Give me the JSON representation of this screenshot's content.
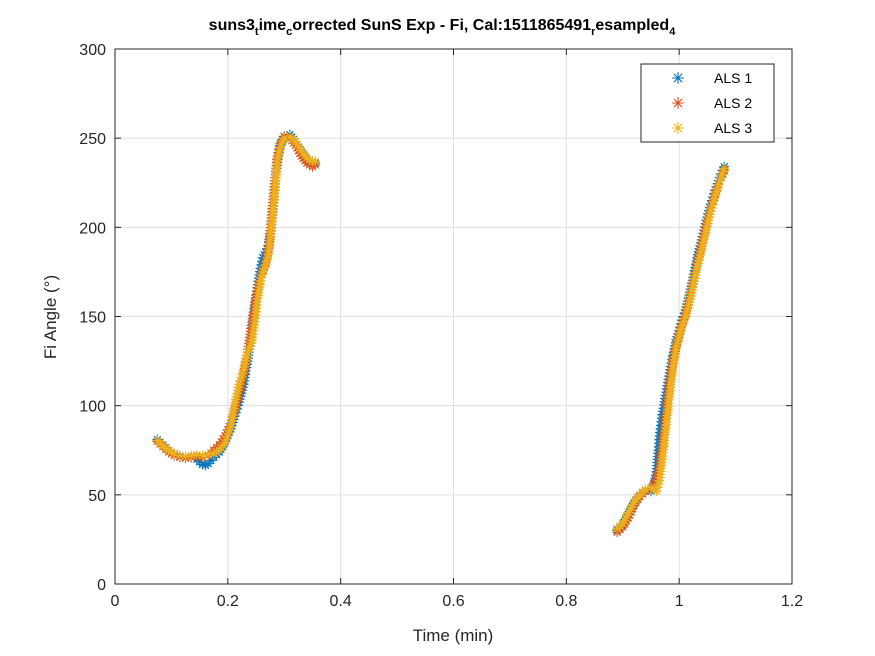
{
  "chart_data": {
    "type": "scatter",
    "title_parts": [
      {
        "text": "suns3",
        "sub": false
      },
      {
        "text": "t",
        "sub": true
      },
      {
        "text": "ime",
        "sub": false
      },
      {
        "text": "c",
        "sub": true
      },
      {
        "text": "orrected SunS Exp - Fi, Cal:1511865491",
        "sub": false
      },
      {
        "text": "r",
        "sub": true
      },
      {
        "text": "esampled",
        "sub": false
      },
      {
        "text": "4",
        "sub": true
      }
    ],
    "xlabel": "Time (min)",
    "ylabel": "Fi Angle (°)",
    "xlim": [
      0,
      1.2
    ],
    "ylim": [
      0,
      300
    ],
    "xticks": [
      "0",
      "0.2",
      "0.4",
      "0.6",
      "0.8",
      "1",
      "1.2"
    ],
    "yticks": [
      "0",
      "50",
      "100",
      "150",
      "200",
      "250",
      "300"
    ],
    "grid": true,
    "legend_position": "top-right",
    "marker": "*",
    "series": [
      {
        "name": "ALS 1",
        "color": "#0072BD",
        "points": [
          [
            0.075,
            81
          ],
          [
            0.085,
            78
          ],
          [
            0.095,
            75
          ],
          [
            0.105,
            73
          ],
          [
            0.115,
            71.5
          ],
          [
            0.125,
            71
          ],
          [
            0.135,
            71
          ],
          [
            0.145,
            70
          ],
          [
            0.155,
            67
          ],
          [
            0.16,
            66.5
          ],
          [
            0.165,
            67.5
          ],
          [
            0.175,
            71
          ],
          [
            0.185,
            74
          ],
          [
            0.195,
            80
          ],
          [
            0.205,
            87
          ],
          [
            0.212,
            94
          ],
          [
            0.22,
            102
          ],
          [
            0.228,
            112
          ],
          [
            0.235,
            125
          ],
          [
            0.242,
            140
          ],
          [
            0.248,
            155
          ],
          [
            0.253,
            168
          ],
          [
            0.258,
            177
          ],
          [
            0.262,
            183
          ],
          [
            0.267,
            186
          ],
          [
            0.272,
            190
          ],
          [
            0.276,
            198
          ],
          [
            0.28,
            212
          ],
          [
            0.284,
            226
          ],
          [
            0.288,
            238
          ],
          [
            0.293,
            246
          ],
          [
            0.3,
            251
          ],
          [
            0.31,
            252
          ],
          [
            0.32,
            248
          ],
          [
            0.33,
            242
          ],
          [
            0.34,
            238
          ],
          [
            0.35,
            237
          ],
          [
            0.355,
            236
          ],
          [
            0.89,
            30
          ],
          [
            0.9,
            33
          ],
          [
            0.91,
            39
          ],
          [
            0.92,
            45
          ],
          [
            0.93,
            50
          ],
          [
            0.94,
            52
          ],
          [
            0.95,
            52
          ],
          [
            0.955,
            55
          ],
          [
            0.96,
            63
          ],
          [
            0.963,
            75
          ],
          [
            0.966,
            85
          ],
          [
            0.97,
            95
          ],
          [
            0.975,
            104
          ],
          [
            0.98,
            113
          ],
          [
            0.985,
            122
          ],
          [
            0.99,
            130
          ],
          [
            0.995,
            137
          ],
          [
            1.0,
            142
          ],
          [
            1.005,
            148
          ],
          [
            1.01,
            152
          ],
          [
            1.018,
            162
          ],
          [
            1.025,
            172
          ],
          [
            1.032,
            183
          ],
          [
            1.04,
            193
          ],
          [
            1.048,
            204
          ],
          [
            1.056,
            213
          ],
          [
            1.064,
            221
          ],
          [
            1.072,
            228
          ],
          [
            1.08,
            234
          ]
        ]
      },
      {
        "name": "ALS 2",
        "color": "#D95319",
        "points": [
          [
            0.075,
            80
          ],
          [
            0.085,
            77
          ],
          [
            0.095,
            74
          ],
          [
            0.105,
            72
          ],
          [
            0.115,
            71
          ],
          [
            0.125,
            70.5
          ],
          [
            0.135,
            71
          ],
          [
            0.145,
            71.5
          ],
          [
            0.155,
            71
          ],
          [
            0.165,
            72
          ],
          [
            0.175,
            75
          ],
          [
            0.185,
            78
          ],
          [
            0.195,
            83
          ],
          [
            0.205,
            90
          ],
          [
            0.212,
            97
          ],
          [
            0.22,
            106
          ],
          [
            0.228,
            117
          ],
          [
            0.235,
            130
          ],
          [
            0.242,
            145
          ],
          [
            0.248,
            158
          ],
          [
            0.253,
            166
          ],
          [
            0.258,
            172
          ],
          [
            0.262,
            176
          ],
          [
            0.267,
            180
          ],
          [
            0.272,
            188
          ],
          [
            0.276,
            200
          ],
          [
            0.28,
            214
          ],
          [
            0.284,
            228
          ],
          [
            0.288,
            240
          ],
          [
            0.293,
            247
          ],
          [
            0.3,
            251
          ],
          [
            0.31,
            250
          ],
          [
            0.32,
            246
          ],
          [
            0.33,
            240
          ],
          [
            0.34,
            236
          ],
          [
            0.35,
            234
          ],
          [
            0.355,
            235
          ],
          [
            0.89,
            29
          ],
          [
            0.9,
            32
          ],
          [
            0.91,
            37
          ],
          [
            0.92,
            44
          ],
          [
            0.93,
            49
          ],
          [
            0.94,
            52
          ],
          [
            0.95,
            53
          ],
          [
            0.955,
            56
          ],
          [
            0.96,
            60
          ],
          [
            0.965,
            66
          ],
          [
            0.97,
            78
          ],
          [
            0.975,
            92
          ],
          [
            0.98,
            106
          ],
          [
            0.985,
            118
          ],
          [
            0.99,
            127
          ],
          [
            0.995,
            134
          ],
          [
            1.0,
            140
          ],
          [
            1.005,
            146
          ],
          [
            1.01,
            150
          ],
          [
            1.018,
            160
          ],
          [
            1.025,
            170
          ],
          [
            1.032,
            180
          ],
          [
            1.04,
            191
          ],
          [
            1.048,
            202
          ],
          [
            1.056,
            211
          ],
          [
            1.064,
            219
          ],
          [
            1.072,
            226
          ],
          [
            1.08,
            232
          ]
        ]
      },
      {
        "name": "ALS 3",
        "color": "#EDB120",
        "points": [
          [
            0.075,
            80.5
          ],
          [
            0.085,
            77.5
          ],
          [
            0.095,
            75
          ],
          [
            0.105,
            73
          ],
          [
            0.115,
            72
          ],
          [
            0.125,
            71.5
          ],
          [
            0.135,
            72
          ],
          [
            0.145,
            72.5
          ],
          [
            0.155,
            72
          ],
          [
            0.165,
            72.5
          ],
          [
            0.175,
            73
          ],
          [
            0.185,
            75
          ],
          [
            0.195,
            79
          ],
          [
            0.205,
            88
          ],
          [
            0.212,
            100
          ],
          [
            0.22,
            112
          ],
          [
            0.228,
            120
          ],
          [
            0.235,
            130
          ],
          [
            0.242,
            135
          ],
          [
            0.248,
            147
          ],
          [
            0.253,
            160
          ],
          [
            0.258,
            170
          ],
          [
            0.262,
            175
          ],
          [
            0.267,
            179
          ],
          [
            0.272,
            185
          ],
          [
            0.276,
            196
          ],
          [
            0.28,
            210
          ],
          [
            0.284,
            224
          ],
          [
            0.288,
            237
          ],
          [
            0.293,
            245
          ],
          [
            0.3,
            250
          ],
          [
            0.31,
            251
          ],
          [
            0.32,
            248
          ],
          [
            0.33,
            243
          ],
          [
            0.34,
            239
          ],
          [
            0.35,
            237
          ],
          [
            0.355,
            237
          ],
          [
            0.89,
            31
          ],
          [
            0.9,
            34
          ],
          [
            0.91,
            40
          ],
          [
            0.92,
            46
          ],
          [
            0.93,
            50
          ],
          [
            0.94,
            53
          ],
          [
            0.95,
            54
          ],
          [
            0.955,
            53
          ],
          [
            0.96,
            52
          ],
          [
            0.965,
            58
          ],
          [
            0.97,
            70
          ],
          [
            0.975,
            84
          ],
          [
            0.98,
            98
          ],
          [
            0.985,
            112
          ],
          [
            0.99,
            124
          ],
          [
            0.995,
            133
          ],
          [
            1.0,
            139
          ],
          [
            1.005,
            145
          ],
          [
            1.01,
            149
          ],
          [
            1.018,
            158
          ],
          [
            1.025,
            168
          ],
          [
            1.032,
            178
          ],
          [
            1.04,
            188
          ],
          [
            1.048,
            199
          ],
          [
            1.056,
            209
          ],
          [
            1.064,
            218
          ],
          [
            1.072,
            226
          ],
          [
            1.08,
            233
          ]
        ]
      }
    ]
  }
}
